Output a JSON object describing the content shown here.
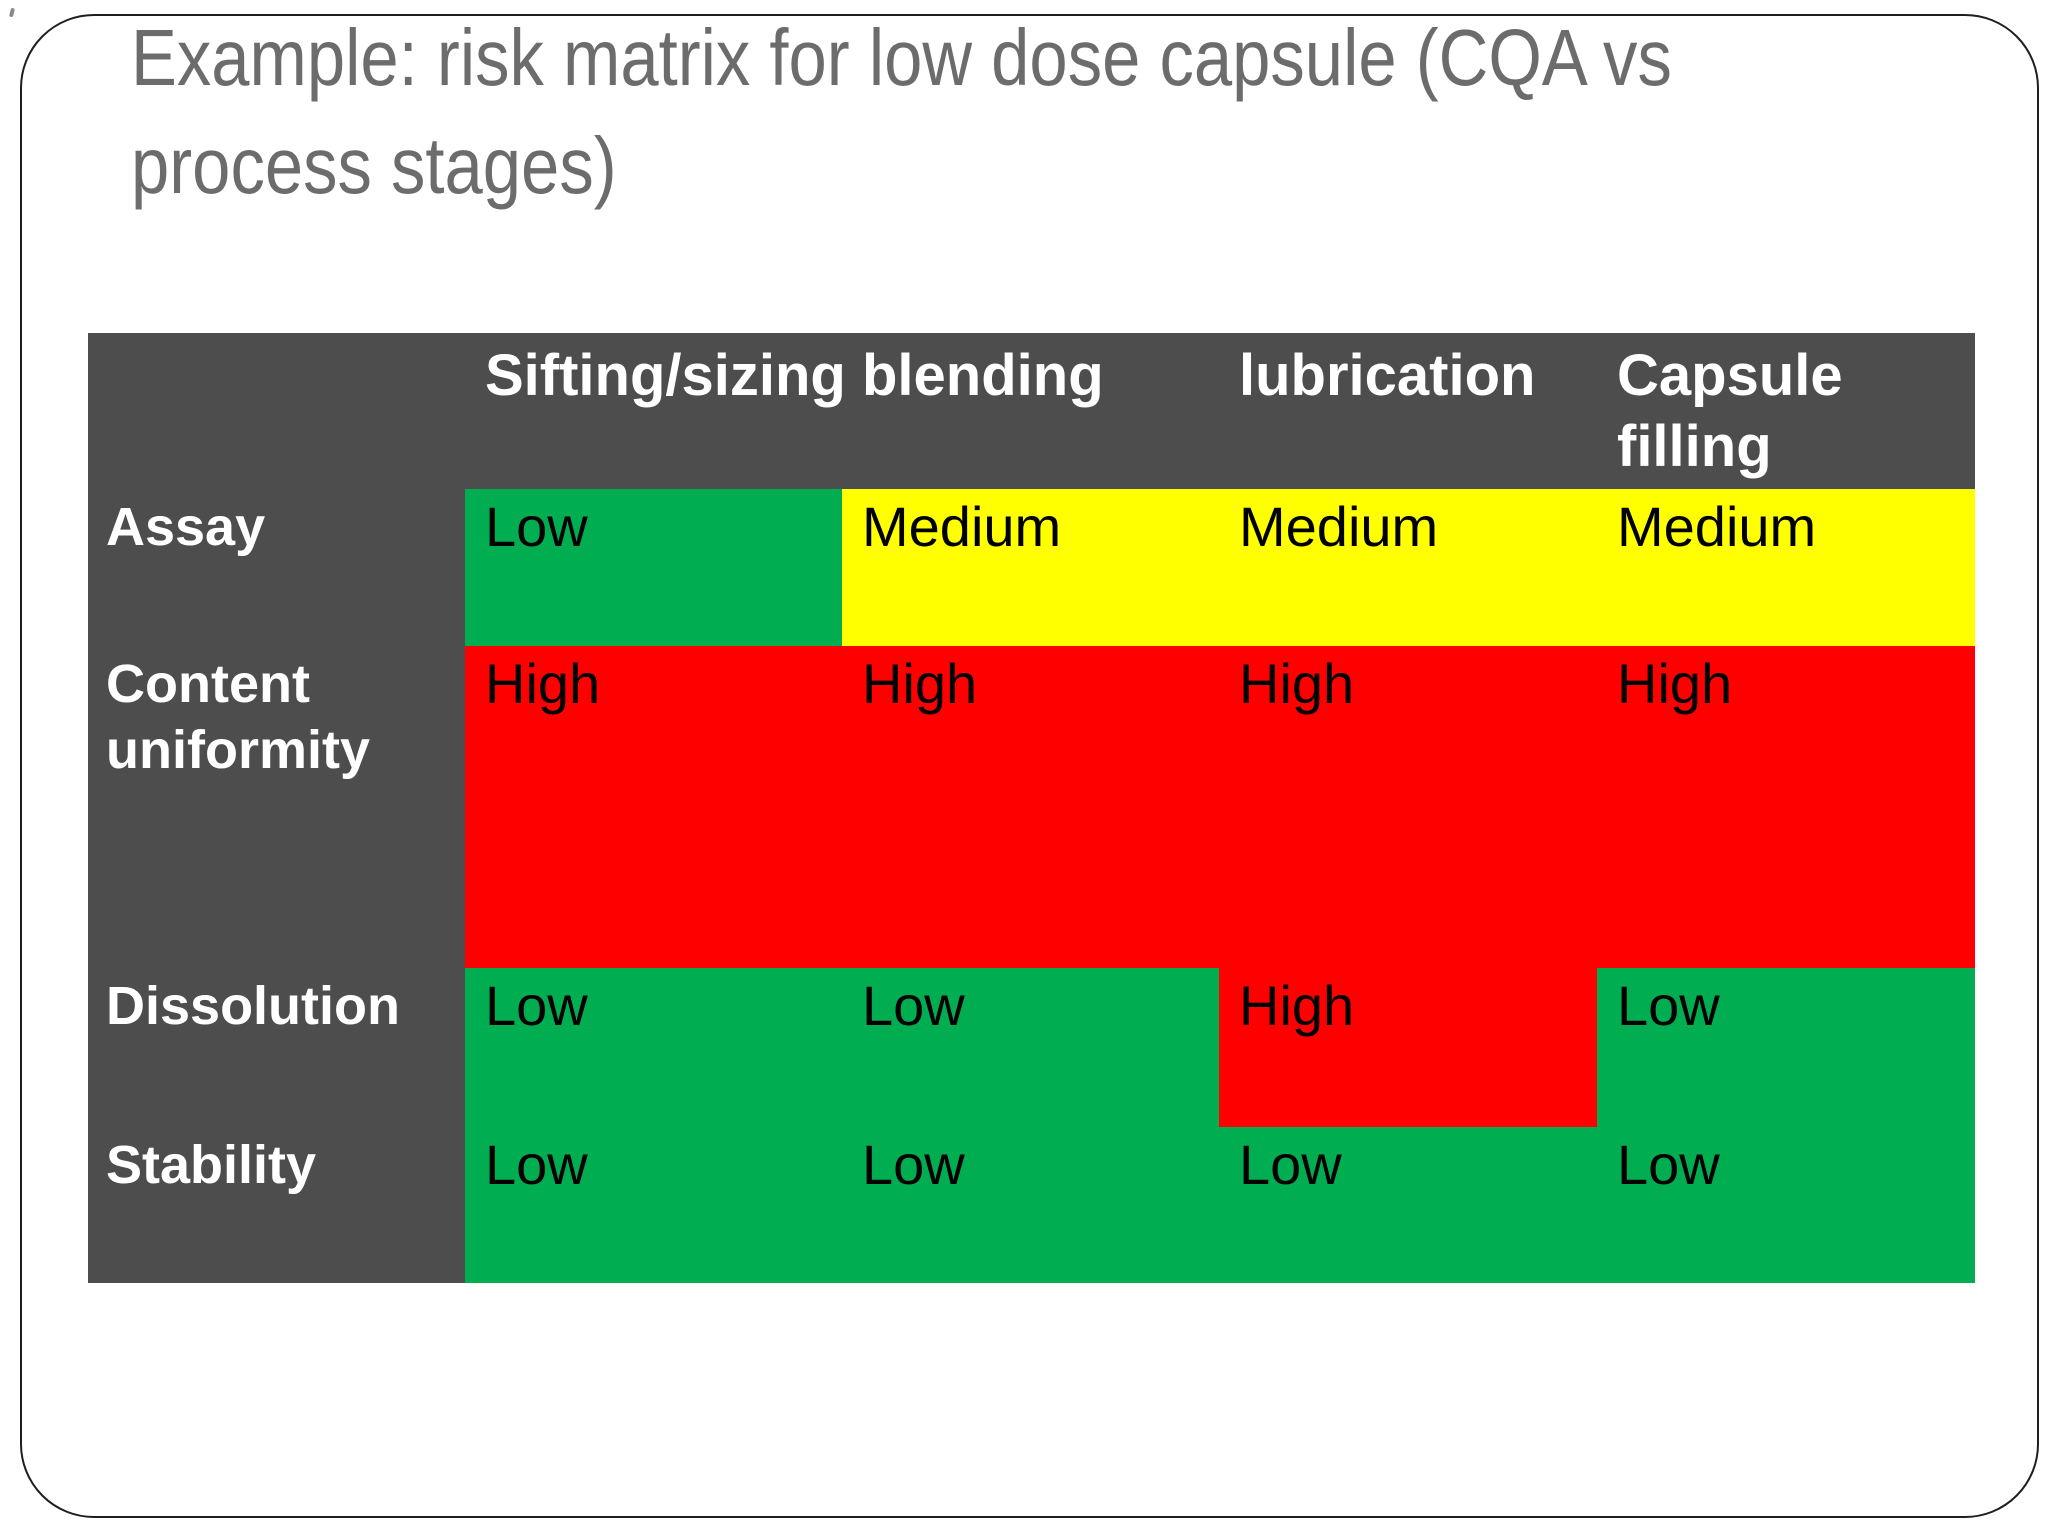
{
  "slide": {
    "title": "Example: risk matrix for low dose capsule (CQA vs process stages)",
    "title_lines": [
      "Example: risk matrix for low dose capsule (CQA vs",
      "process stages)"
    ],
    "title_color": "#6c6c6c",
    "border_color": "#1f1f1f",
    "background_color": "#ffffff"
  },
  "matrix": {
    "corner_label": "",
    "columns": [
      "Sifting/sizing",
      "blending",
      "lubrication",
      "Capsule filling"
    ],
    "rows": [
      {
        "label": "Assay",
        "values": [
          "Low",
          "Medium",
          "Medium",
          "Medium"
        ],
        "levels": [
          "low",
          "medium",
          "medium",
          "medium"
        ]
      },
      {
        "label": "Content uniformity",
        "values": [
          "High",
          "High",
          "High",
          "High"
        ],
        "levels": [
          "high",
          "high",
          "high",
          "high"
        ]
      },
      {
        "label": "Dissolution",
        "values": [
          "Low",
          "Low",
          "High",
          "Low"
        ],
        "levels": [
          "low",
          "low",
          "high",
          "low"
        ]
      },
      {
        "label": "Stability",
        "values": [
          "Low",
          "Low",
          "Low",
          "Low"
        ],
        "levels": [
          "low",
          "low",
          "low",
          "low"
        ]
      }
    ],
    "risk_colors": {
      "low": "#00ae51",
      "medium": "#ffff00",
      "high": "#ff0000"
    },
    "header_bg": "#4d4d4d",
    "header_text_color": "#ffffff",
    "value_text_color": "#000000"
  },
  "chart_data": {
    "type": "heatmap",
    "title": "Example: risk matrix for low dose capsule (CQA vs process stages)",
    "x_categories": [
      "Sifting/sizing",
      "blending",
      "lubrication",
      "Capsule filling"
    ],
    "y_categories": [
      "Assay",
      "Content uniformity",
      "Dissolution",
      "Stability"
    ],
    "cells": [
      [
        "Low",
        "Medium",
        "Medium",
        "Medium"
      ],
      [
        "High",
        "High",
        "High",
        "High"
      ],
      [
        "Low",
        "Low",
        "High",
        "Low"
      ],
      [
        "Low",
        "Low",
        "Low",
        "Low"
      ]
    ],
    "value_scale": [
      "Low",
      "Medium",
      "High"
    ],
    "color_map": {
      "Low": "#00ae51",
      "Medium": "#ffff00",
      "High": "#ff0000"
    }
  }
}
